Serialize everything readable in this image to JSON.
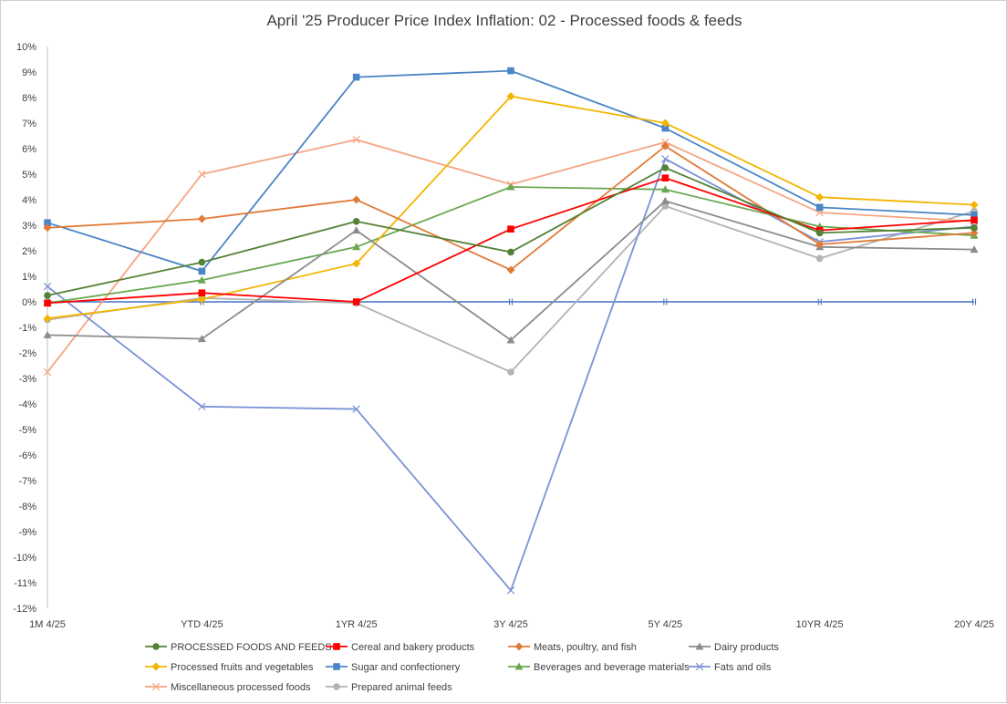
{
  "chart_data": {
    "type": "line",
    "title": "April '25 Producer Price Index Inflation: 02 - Processed foods & feeds",
    "x": [
      "1M 4/25",
      "YTD  4/25",
      "1YR 4/25",
      "3Y 4/25",
      "5Y 4/25",
      "10YR  4/25",
      "20Y 4/25"
    ],
    "y_ticks": [
      "10%",
      "9%",
      "8%",
      "7%",
      "6%",
      "5%",
      "4%",
      "3%",
      "2%",
      "1%",
      "0%",
      "-1%",
      "-2%",
      "-3%",
      "-4%",
      "-5%",
      "-6%",
      "-7%",
      "-8%",
      "-9%",
      "-10%",
      "-11%",
      "-12%"
    ],
    "ylim": [
      -12,
      10
    ],
    "yunit": "%",
    "grid": false,
    "legend_position": "bottom",
    "series": [
      {
        "name": "PROCESSED FOODS AND FEEDS",
        "color": "#548235",
        "marker": "circle",
        "values": [
          0.25,
          1.55,
          3.15,
          1.95,
          5.25,
          2.7,
          2.9
        ]
      },
      {
        "name": "Cereal and bakery products",
        "color": "#ff0000",
        "marker": "square",
        "values": [
          -0.05,
          0.35,
          0.0,
          2.85,
          4.85,
          2.8,
          3.2
        ]
      },
      {
        "name": "Meats, poultry, and fish",
        "color": "#e07b39",
        "marker": "diamond",
        "values": [
          2.9,
          3.25,
          4.0,
          1.25,
          6.1,
          2.25,
          2.7
        ]
      },
      {
        "name": "Dairy products",
        "color": "#8c8c8c",
        "marker": "triangle",
        "values": [
          -1.3,
          -1.45,
          2.8,
          -1.5,
          3.95,
          2.15,
          2.05
        ]
      },
      {
        "name": "Processed fruits and vegetables",
        "color": "#f4b400",
        "marker": "diamond",
        "values": [
          -0.65,
          0.1,
          1.5,
          8.05,
          7.0,
          4.1,
          3.8
        ]
      },
      {
        "name": "Sugar and confectionery",
        "color": "#4a86c5",
        "marker": "square",
        "values": [
          3.1,
          1.2,
          8.8,
          9.05,
          6.8,
          3.7,
          3.4
        ]
      },
      {
        "name": "Beverages and beverage materials",
        "color": "#6aa84f",
        "marker": "triangle",
        "values": [
          -0.05,
          0.85,
          2.15,
          4.5,
          4.4,
          2.95,
          2.6
        ]
      },
      {
        "name": "Fats and oils",
        "color": "#7a92d6",
        "marker": "x",
        "values": [
          0.6,
          -4.1,
          -4.2,
          -11.3,
          5.6,
          2.35,
          2.95
        ]
      },
      {
        "name": "Miscellaneous processed foods",
        "color": "#f4a582",
        "marker": "x",
        "values": [
          -2.75,
          5.0,
          6.35,
          4.6,
          6.25,
          3.5,
          3.15
        ]
      },
      {
        "name": "Prepared animal feeds",
        "color": "#b3b3b3",
        "marker": "circle",
        "values": [
          -0.7,
          0.15,
          -0.05,
          -2.75,
          3.75,
          1.7,
          3.55
        ]
      },
      {
        "name": "",
        "color": "#4472c4",
        "marker": "dash",
        "values": [
          0,
          0,
          0,
          0,
          0,
          0,
          0
        ]
      }
    ]
  }
}
